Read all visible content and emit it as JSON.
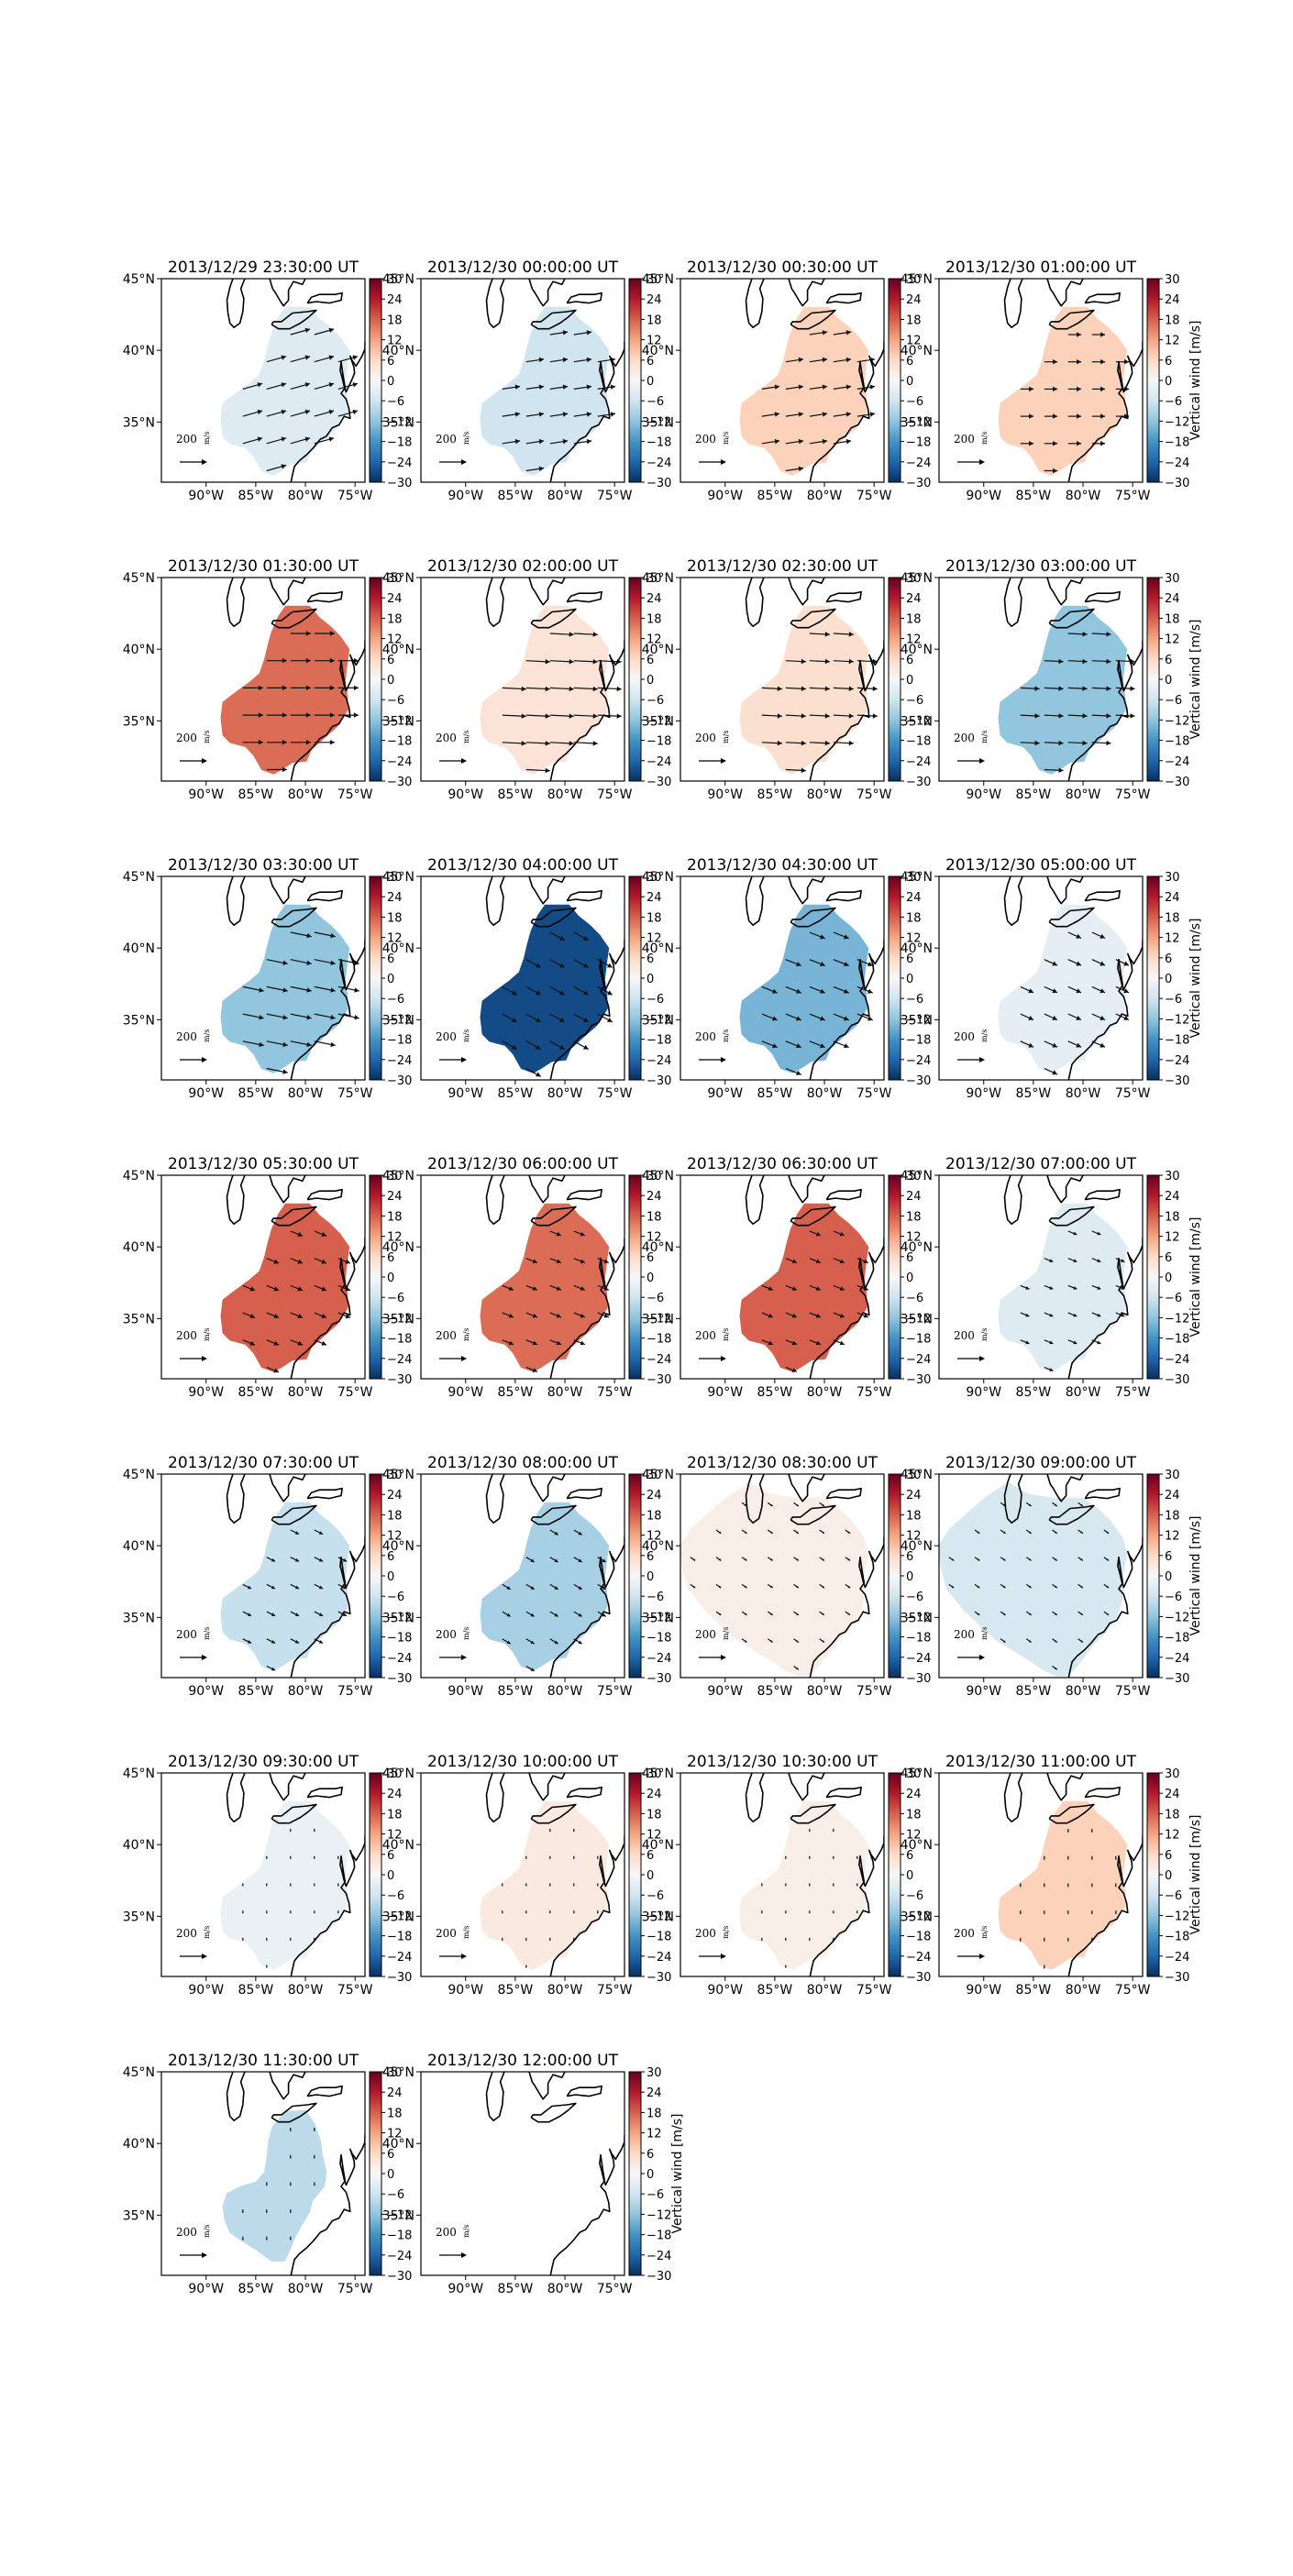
{
  "figure": {
    "colorbar_label": "Vertical wind [m/s]",
    "colorbar_ticks": [
      30,
      24,
      18,
      12,
      6,
      0,
      -6,
      -12,
      -18,
      -24,
      -30
    ],
    "colorbar_range": [
      -30,
      30
    ],
    "colormap": "RdBu_r",
    "colormap_stops": [
      "#053061",
      "#2166ac",
      "#4393c3",
      "#92c5de",
      "#d1e5f0",
      "#f7f7f7",
      "#fddbc7",
      "#f4a582",
      "#d6604d",
      "#b2182b",
      "#67001f"
    ],
    "lon_ticks": [
      "90°W",
      "85°W",
      "80°W",
      "75°W"
    ],
    "lat_ticks": [
      "45°N",
      "40°N",
      "35°N"
    ],
    "reference_arrow_label": "200",
    "reference_arrow_unit": "m/s",
    "coastline_color": "#000000"
  },
  "chart_data": [
    {
      "type": "heatmap",
      "title": "2013/12/29 23:30:00 UT",
      "vertical_wind": -4,
      "vector_u": 1.0,
      "vector_v": 0.28,
      "vector_length": 0.85,
      "coverage": "core"
    },
    {
      "type": "heatmap",
      "title": "2013/12/30 00:00:00 UT",
      "vertical_wind": -6,
      "vector_u": 1.0,
      "vector_v": 0.15,
      "vector_length": 0.75,
      "coverage": "core"
    },
    {
      "type": "heatmap",
      "title": "2013/12/30 00:30:00 UT",
      "vertical_wind": 7,
      "vector_u": 1.0,
      "vector_v": 0.15,
      "vector_length": 0.75,
      "coverage": "core"
    },
    {
      "type": "heatmap",
      "title": "2013/12/30 01:00:00 UT",
      "vertical_wind": 7,
      "vector_u": 1.0,
      "vector_v": 0.0,
      "vector_length": 0.55,
      "coverage": "core"
    },
    {
      "type": "heatmap",
      "title": "2013/12/30 01:30:00 UT",
      "vertical_wind": 17,
      "vector_u": 1.0,
      "vector_v": 0.0,
      "vector_length": 0.85,
      "coverage": "core"
    },
    {
      "type": "heatmap",
      "title": "2013/12/30 02:00:00 UT",
      "vertical_wind": 4,
      "vector_u": 1.0,
      "vector_v": -0.05,
      "vector_length": 1.0,
      "coverage": "core"
    },
    {
      "type": "heatmap",
      "title": "2013/12/30 02:30:00 UT",
      "vertical_wind": 5,
      "vector_u": 1.0,
      "vector_v": -0.05,
      "vector_length": 0.85,
      "coverage": "core"
    },
    {
      "type": "heatmap",
      "title": "2013/12/30 03:00:00 UT",
      "vertical_wind": -12,
      "vector_u": 1.0,
      "vector_v": -0.05,
      "vector_length": 0.8,
      "coverage": "core"
    },
    {
      "type": "heatmap",
      "title": "2013/12/30 03:30:00 UT",
      "vertical_wind": -12,
      "vector_u": 1.0,
      "vector_v": -0.2,
      "vector_length": 0.9,
      "coverage": "core"
    },
    {
      "type": "heatmap",
      "title": "2013/12/30 04:00:00 UT",
      "vertical_wind": -27,
      "vector_u": 1.0,
      "vector_v": -0.55,
      "vector_length": 0.7,
      "coverage": "core"
    },
    {
      "type": "heatmap",
      "title": "2013/12/30 04:30:00 UT",
      "vertical_wind": -14,
      "vector_u": 1.0,
      "vector_v": -0.4,
      "vector_length": 0.7,
      "coverage": "core"
    },
    {
      "type": "heatmap",
      "title": "2013/12/30 05:00:00 UT",
      "vertical_wind": -3,
      "vector_u": 1.0,
      "vector_v": -0.45,
      "vector_length": 0.6,
      "coverage": "core"
    },
    {
      "type": "heatmap",
      "title": "2013/12/30 05:30:00 UT",
      "vertical_wind": 18,
      "vector_u": 1.0,
      "vector_v": -0.4,
      "vector_length": 0.55,
      "coverage": "core"
    },
    {
      "type": "heatmap",
      "title": "2013/12/30 06:00:00 UT",
      "vertical_wind": 17,
      "vector_u": 1.0,
      "vector_v": -0.4,
      "vector_length": 0.5,
      "coverage": "core"
    },
    {
      "type": "heatmap",
      "title": "2013/12/30 06:30:00 UT",
      "vertical_wind": 18,
      "vector_u": 1.0,
      "vector_v": -0.4,
      "vector_length": 0.5,
      "coverage": "core"
    },
    {
      "type": "heatmap",
      "title": "2013/12/30 07:00:00 UT",
      "vertical_wind": -4,
      "vector_u": 1.0,
      "vector_v": -0.4,
      "vector_length": 0.4,
      "coverage": "core"
    },
    {
      "type": "heatmap",
      "title": "2013/12/30 07:30:00 UT",
      "vertical_wind": -7,
      "vector_u": 1.0,
      "vector_v": -0.5,
      "vector_length": 0.4,
      "coverage": "core"
    },
    {
      "type": "heatmap",
      "title": "2013/12/30 08:00:00 UT",
      "vertical_wind": -10,
      "vector_u": 1.0,
      "vector_v": -0.6,
      "vector_length": 0.4,
      "coverage": "core"
    },
    {
      "type": "heatmap",
      "title": "2013/12/30 08:30:00 UT",
      "vertical_wind": 2,
      "vector_u": 1.0,
      "vector_v": -0.7,
      "vector_length": 0.25,
      "coverage": "wide"
    },
    {
      "type": "heatmap",
      "title": "2013/12/30 09:00:00 UT",
      "vertical_wind": -5,
      "vector_u": 1.0,
      "vector_v": -0.7,
      "vector_length": 0.25,
      "coverage": "wide"
    },
    {
      "type": "heatmap",
      "title": "2013/12/30 09:30:00 UT",
      "vertical_wind": -2,
      "vector_u": 0.0,
      "vector_v": -1.0,
      "vector_length": 0.12,
      "coverage": "core"
    },
    {
      "type": "heatmap",
      "title": "2013/12/30 10:00:00 UT",
      "vertical_wind": 3,
      "vector_u": 0.0,
      "vector_v": -1.0,
      "vector_length": 0.12,
      "coverage": "core"
    },
    {
      "type": "heatmap",
      "title": "2013/12/30 10:30:00 UT",
      "vertical_wind": 2,
      "vector_u": 0.0,
      "vector_v": -1.0,
      "vector_length": 0.12,
      "coverage": "core"
    },
    {
      "type": "heatmap",
      "title": "2013/12/30 11:00:00 UT",
      "vertical_wind": 7,
      "vector_u": 0.0,
      "vector_v": -1.0,
      "vector_length": 0.15,
      "coverage": "core"
    },
    {
      "type": "heatmap",
      "title": "2013/12/30 11:30:00 UT",
      "vertical_wind": -8,
      "vector_u": 0.0,
      "vector_v": -1.0,
      "vector_length": 0.15,
      "coverage": "narrow"
    },
    {
      "type": "heatmap",
      "title": "2013/12/30 12:00:00 UT",
      "vertical_wind": null,
      "vector_u": 0.0,
      "vector_v": 0.0,
      "vector_length": 0.0,
      "coverage": "none"
    }
  ]
}
